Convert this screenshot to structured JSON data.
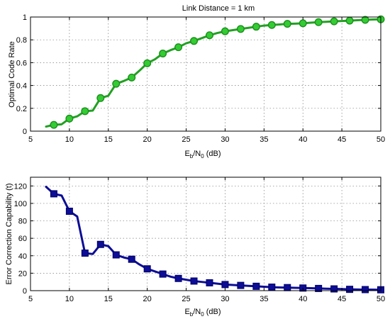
{
  "chart_data": [
    {
      "type": "line",
      "title": "Link Distance = 1 km",
      "xlabel": {
        "main": "E",
        "sub1": "b",
        "mid": "/N",
        "sub2": "0",
        "tail": " (dB)"
      },
      "ylabel": "Optimal Code Rate",
      "xlim": [
        5,
        50
      ],
      "ylim": [
        0,
        1
      ],
      "xticks": [
        5,
        10,
        15,
        20,
        25,
        30,
        35,
        40,
        45,
        50
      ],
      "yticks": [
        0,
        0.2,
        0.4,
        0.6,
        0.8,
        1
      ],
      "ytick_labels": [
        "0",
        "0.2",
        "0.4",
        "0.6",
        "0.8",
        "1"
      ],
      "grid": true,
      "color": "#22a022",
      "marker": "circle",
      "line": {
        "x": [
          7,
          8,
          9,
          10,
          11,
          12,
          13,
          14,
          15,
          16,
          17,
          18,
          19,
          20,
          21,
          22,
          23,
          24,
          25,
          26,
          27,
          28,
          29,
          30,
          31,
          32,
          33,
          34,
          35,
          36,
          37,
          38,
          39,
          40,
          41,
          42,
          43,
          44,
          45,
          46,
          47,
          48,
          49,
          50
        ],
        "y": [
          0.04,
          0.055,
          0.06,
          0.11,
          0.13,
          0.175,
          0.18,
          0.29,
          0.31,
          0.415,
          0.44,
          0.47,
          0.53,
          0.595,
          0.63,
          0.68,
          0.71,
          0.735,
          0.77,
          0.79,
          0.815,
          0.84,
          0.86,
          0.875,
          0.885,
          0.895,
          0.905,
          0.915,
          0.925,
          0.93,
          0.935,
          0.94,
          0.942,
          0.945,
          0.95,
          0.955,
          0.958,
          0.962,
          0.965,
          0.968,
          0.972,
          0.975,
          0.978,
          0.98
        ]
      },
      "markers": {
        "x": [
          8,
          10,
          12,
          14,
          16,
          18,
          20,
          22,
          24,
          26,
          28,
          30,
          32,
          34,
          36,
          38,
          40,
          42,
          44,
          46,
          48,
          50
        ],
        "y": [
          0.055,
          0.11,
          0.175,
          0.29,
          0.415,
          0.47,
          0.595,
          0.68,
          0.735,
          0.79,
          0.84,
          0.875,
          0.895,
          0.915,
          0.93,
          0.94,
          0.945,
          0.955,
          0.962,
          0.968,
          0.975,
          0.98
        ]
      }
    },
    {
      "type": "line",
      "title": "",
      "xlabel": {
        "main": "E",
        "sub1": "b",
        "mid": "/N",
        "sub2": "0",
        "tail": " (dB)"
      },
      "ylabel": "Error Correction Capability (t)",
      "xlim": [
        5,
        50
      ],
      "ylim": [
        0,
        130
      ],
      "xticks": [
        5,
        10,
        15,
        20,
        25,
        30,
        35,
        40,
        45,
        50
      ],
      "yticks": [
        0,
        20,
        40,
        60,
        80,
        100,
        120
      ],
      "ytick_labels": [
        "0",
        "20",
        "40",
        "60",
        "80",
        "100",
        "120"
      ],
      "grid": true,
      "color": "#0d0d96",
      "marker": "square",
      "line": {
        "x": [
          7,
          8,
          9,
          10,
          11,
          12,
          13,
          14,
          15,
          16,
          17,
          18,
          19,
          20,
          21,
          22,
          23,
          24,
          25,
          26,
          27,
          28,
          29,
          30,
          31,
          32,
          33,
          34,
          35,
          36,
          37,
          38,
          39,
          40,
          41,
          42,
          43,
          44,
          45,
          46,
          47,
          48,
          49,
          50
        ],
        "y": [
          119,
          111,
          109,
          91,
          85,
          43,
          42,
          53,
          51,
          41,
          38,
          36,
          30,
          25,
          22,
          19,
          16,
          14,
          12.5,
          11,
          10,
          9,
          8,
          7,
          6.5,
          6,
          5.5,
          5,
          4.5,
          4,
          3.7,
          3.5,
          3.2,
          3,
          2.8,
          2.5,
          2.2,
          2,
          1.8,
          1.5,
          1.3,
          1.2,
          1.1,
          1
        ]
      },
      "markers": {
        "x": [
          8,
          10,
          12,
          14,
          16,
          18,
          20,
          22,
          24,
          26,
          28,
          30,
          32,
          34,
          36,
          38,
          40,
          42,
          44,
          46,
          48,
          50
        ],
        "y": [
          111,
          91,
          43,
          53,
          41,
          36,
          25,
          19,
          14,
          11,
          9,
          7,
          6,
          5,
          4,
          3.5,
          3,
          2.5,
          2,
          1.5,
          1.2,
          1
        ]
      }
    }
  ]
}
